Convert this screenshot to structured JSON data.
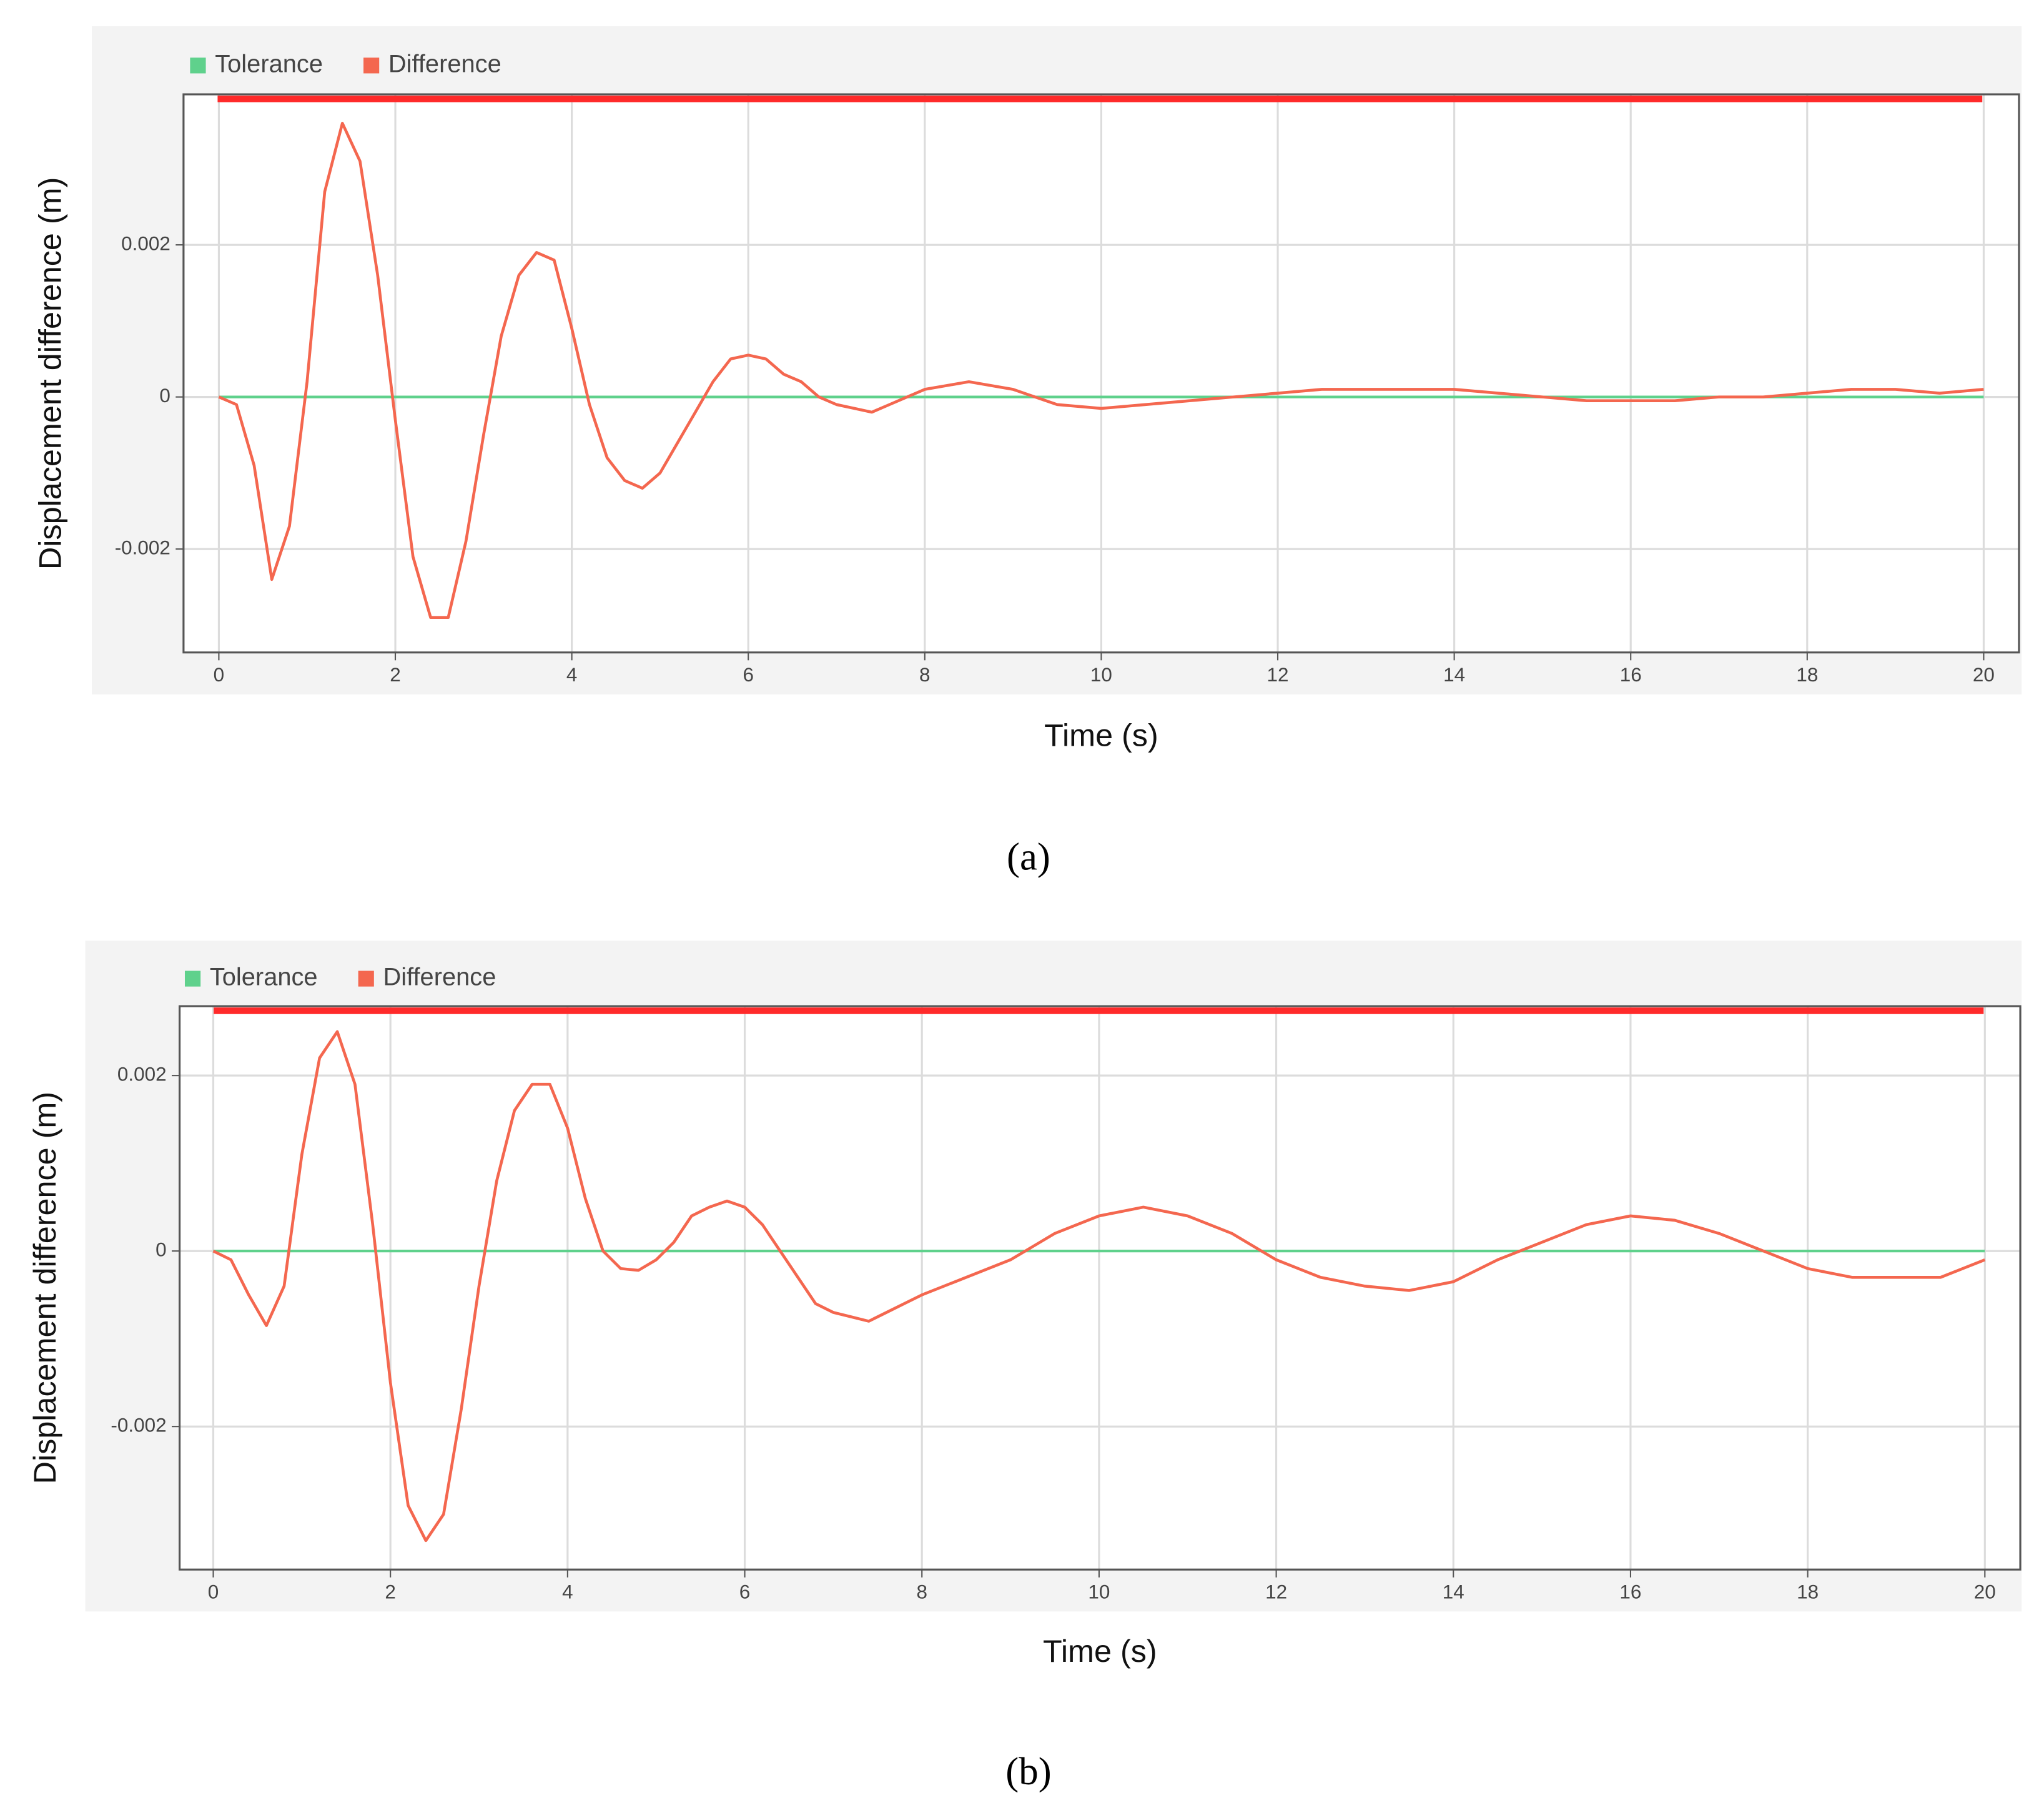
{
  "chart_data": [
    {
      "type": "line",
      "label": "(a)",
      "x_label": "Time (s)",
      "y_label": "Displacement difference (m)",
      "legend": "top-left",
      "grid": true,
      "x": [
        0,
        0.2,
        0.4,
        0.6,
        0.8,
        1.0,
        1.2,
        1.4,
        1.6,
        1.8,
        2.0,
        2.2,
        2.4,
        2.6,
        2.8,
        3.0,
        3.2,
        3.4,
        3.6,
        3.8,
        4.0,
        4.2,
        4.4,
        4.6,
        4.8,
        5.0,
        5.2,
        5.4,
        5.6,
        5.8,
        6.0,
        6.2,
        6.4,
        6.6,
        6.8,
        7.0,
        7.2,
        7.4,
        7.6,
        7.8,
        8.0,
        8.5,
        9,
        9.5,
        10,
        10.5,
        11,
        11.5,
        12,
        12.5,
        13,
        13.5,
        14,
        14.5,
        15,
        15.5,
        16,
        16.5,
        17,
        17.5,
        18,
        18.5,
        19,
        19.5,
        20
      ],
      "series": [
        {
          "name": "Tolerance",
          "color": "#5fd18c",
          "values": [
            0,
            0,
            0,
            0,
            0,
            0,
            0,
            0,
            0,
            0,
            0,
            0,
            0,
            0,
            0,
            0,
            0,
            0,
            0,
            0,
            0,
            0,
            0,
            0,
            0,
            0,
            0,
            0,
            0,
            0,
            0,
            0,
            0,
            0,
            0,
            0,
            0,
            0,
            0,
            0,
            0,
            0,
            0,
            0,
            0,
            0,
            0,
            0,
            0,
            0,
            0,
            0,
            0,
            0,
            0,
            0,
            0,
            0,
            0,
            0,
            0,
            0,
            0,
            0,
            0
          ]
        },
        {
          "name": "Difference",
          "color": "#f4674f",
          "values": [
            0,
            -0.0001,
            -0.0009,
            -0.0024,
            -0.0017,
            0.0002,
            0.0027,
            0.0036,
            0.0031,
            0.0016,
            -0.0003,
            -0.0021,
            -0.0029,
            -0.0029,
            -0.0019,
            -0.0005,
            0.0008,
            0.0016,
            0.0019,
            0.0018,
            0.0009,
            -0.0001,
            -0.0008,
            -0.0011,
            -0.0012,
            -0.001,
            -0.0006,
            -0.0002,
            0.0002,
            0.0005,
            0.00055,
            0.0005,
            0.0003,
            0.0002,
            0,
            -0.0001,
            -0.00015,
            -0.0002,
            -0.0001,
            0,
            0.0001,
            0.0002,
            0.0001,
            -0.0001,
            -0.00015,
            -0.0001,
            -5e-05,
            0,
            5e-05,
            0.0001,
            0.0001,
            0.0001,
            0.0001,
            5e-05,
            0,
            -5e-05,
            -5e-05,
            -5e-05,
            0,
            0,
            5e-05,
            0.0001,
            0.0001,
            5e-05,
            0.0001
          ]
        }
      ],
      "xlim": [
        -0.4,
        20.4
      ],
      "xticks": [
        0,
        2,
        4,
        6,
        8,
        10,
        12,
        14,
        16,
        18,
        20
      ],
      "ylim": [
        -0.00336,
        0.00398
      ],
      "yticks": [
        -0.002,
        0,
        0.002
      ]
    },
    {
      "type": "line",
      "label": "(b)",
      "x_label": "Time (s)",
      "y_label": "Displacement difference (m)",
      "legend": "top-left",
      "grid": true,
      "x": [
        0,
        0.2,
        0.4,
        0.6,
        0.8,
        1.0,
        1.2,
        1.4,
        1.6,
        1.8,
        2.0,
        2.2,
        2.4,
        2.6,
        2.8,
        3.0,
        3.2,
        3.4,
        3.6,
        3.8,
        4.0,
        4.2,
        4.4,
        4.6,
        4.8,
        5.0,
        5.2,
        5.4,
        5.6,
        5.8,
        6.0,
        6.2,
        6.4,
        6.6,
        6.8,
        7.0,
        7.2,
        7.4,
        7.6,
        7.8,
        8.0,
        8.5,
        9,
        9.5,
        10,
        10.5,
        11,
        11.5,
        12,
        12.5,
        13,
        13.5,
        14,
        14.5,
        15,
        15.5,
        16,
        16.5,
        17,
        17.5,
        18,
        18.5,
        19,
        19.5,
        20
      ],
      "series": [
        {
          "name": "Tolerance",
          "color": "#5fd18c",
          "values": [
            0,
            0,
            0,
            0,
            0,
            0,
            0,
            0,
            0,
            0,
            0,
            0,
            0,
            0,
            0,
            0,
            0,
            0,
            0,
            0,
            0,
            0,
            0,
            0,
            0,
            0,
            0,
            0,
            0,
            0,
            0,
            0,
            0,
            0,
            0,
            0,
            0,
            0,
            0,
            0,
            0,
            0,
            0,
            0,
            0,
            0,
            0,
            0,
            0,
            0,
            0,
            0,
            0,
            0,
            0,
            0,
            0,
            0,
            0,
            0,
            0,
            0,
            0,
            0,
            0
          ]
        },
        {
          "name": "Difference",
          "color": "#f4674f",
          "values": [
            0,
            -0.0001,
            -0.0005,
            -0.00085,
            -0.0004,
            0.0011,
            0.0022,
            0.0025,
            0.0019,
            0.0003,
            -0.0015,
            -0.0029,
            -0.0033,
            -0.003,
            -0.0018,
            -0.0004,
            0.0008,
            0.0016,
            0.0019,
            0.0019,
            0.0014,
            0.0006,
            0,
            -0.0002,
            -0.00022,
            -0.0001,
            0.0001,
            0.0004,
            0.0005,
            0.00057,
            0.0005,
            0.0003,
            0,
            -0.0003,
            -0.0006,
            -0.0007,
            -0.00075,
            -0.0008,
            -0.0007,
            -0.0006,
            -0.0005,
            -0.0003,
            -0.0001,
            0.0002,
            0.0004,
            0.0005,
            0.0004,
            0.0002,
            -0.0001,
            -0.0003,
            -0.0004,
            -0.00045,
            -0.00035,
            -0.0001,
            0.0001,
            0.0003,
            0.0004,
            0.00035,
            0.0002,
            0,
            -0.0002,
            -0.0003,
            -0.0003,
            -0.0003,
            -0.0001
          ]
        }
      ],
      "xlim": [
        -0.38,
        20.4
      ],
      "xticks": [
        0,
        2,
        4,
        6,
        8,
        10,
        12,
        14,
        16,
        18,
        20
      ],
      "ylim": [
        -0.00363,
        0.00279
      ],
      "yticks": [
        -0.002,
        0,
        0.002
      ]
    }
  ]
}
